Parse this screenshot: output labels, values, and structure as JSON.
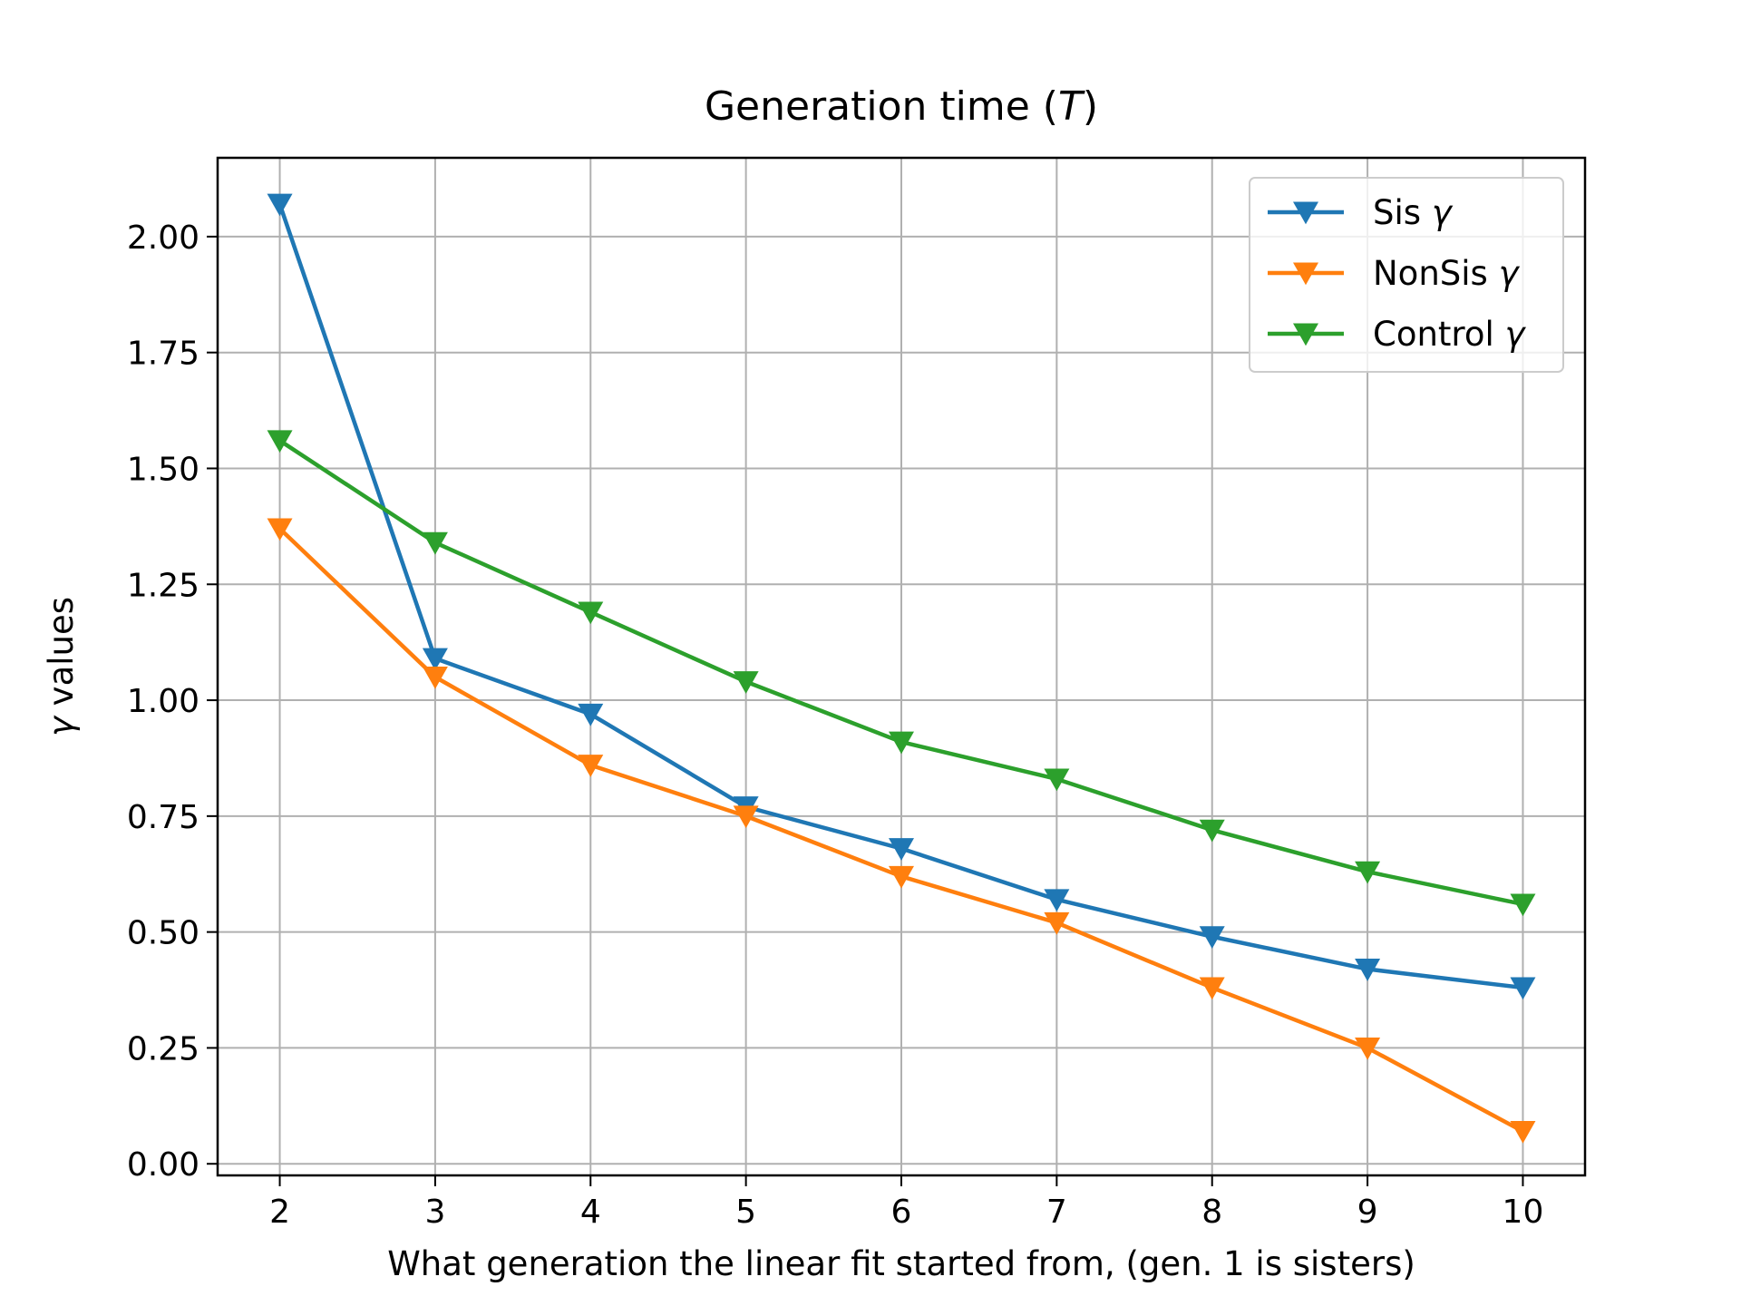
{
  "chart_data": {
    "type": "line",
    "title": "Generation time (",
    "title_italic": "T",
    "title_end": ")",
    "xlabel": "What generation the linear fit started from, (gen. 1 is sisters)",
    "ylabel_symbol": "γ",
    "ylabel": " values",
    "x": [
      2,
      3,
      4,
      5,
      6,
      7,
      8,
      9,
      10
    ],
    "xlim": [
      1.6,
      10.4
    ],
    "ylim": [
      -0.025,
      2.17
    ],
    "xticks": [
      "2",
      "3",
      "4",
      "5",
      "6",
      "7",
      "8",
      "9",
      "10"
    ],
    "yticks": [
      "0.00",
      "0.25",
      "0.50",
      "0.75",
      "1.00",
      "1.25",
      "1.50",
      "1.75",
      "2.00"
    ],
    "grid": true,
    "legend_position": "top-right",
    "marker": "triangle-down",
    "series": [
      {
        "name": "Sis ",
        "name_symbol": "γ",
        "color": "#1f77b4",
        "values": [
          2.07,
          1.09,
          0.97,
          0.77,
          0.68,
          0.57,
          0.49,
          0.42,
          0.38
        ]
      },
      {
        "name": "NonSis ",
        "name_symbol": "γ",
        "color": "#ff7f0e",
        "values": [
          1.37,
          1.05,
          0.86,
          0.75,
          0.62,
          0.52,
          0.38,
          0.25,
          0.07
        ]
      },
      {
        "name": "Control ",
        "name_symbol": "γ",
        "color": "#2ca02c",
        "values": [
          1.56,
          1.34,
          1.19,
          1.04,
          0.91,
          0.83,
          0.72,
          0.63,
          0.56
        ]
      }
    ]
  }
}
